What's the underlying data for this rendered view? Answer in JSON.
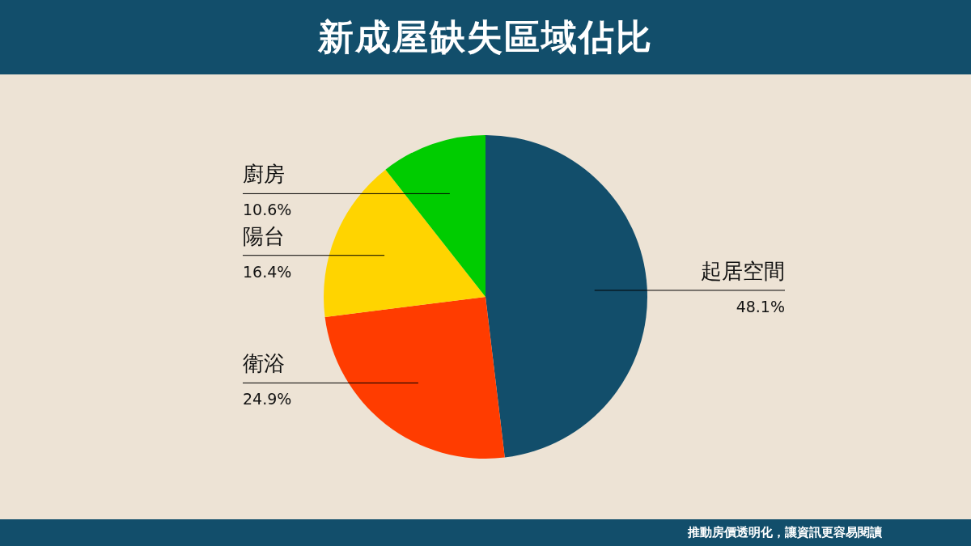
{
  "chart_data": {
    "type": "pie",
    "title": "新成屋缺失區域佔比",
    "categories": [
      "起居空間",
      "衛浴",
      "陽台",
      "廚房"
    ],
    "values": [
      48.1,
      24.9,
      16.4,
      10.6
    ],
    "colors": [
      "#124e6b",
      "#ff3c00",
      "#ffd400",
      "#00cc00"
    ],
    "value_labels": [
      "48.1%",
      "24.9%",
      "16.4%",
      "10.6%"
    ],
    "annotations": [
      "推動房價透明化，讓資訊更容易閱讀"
    ]
  }
}
